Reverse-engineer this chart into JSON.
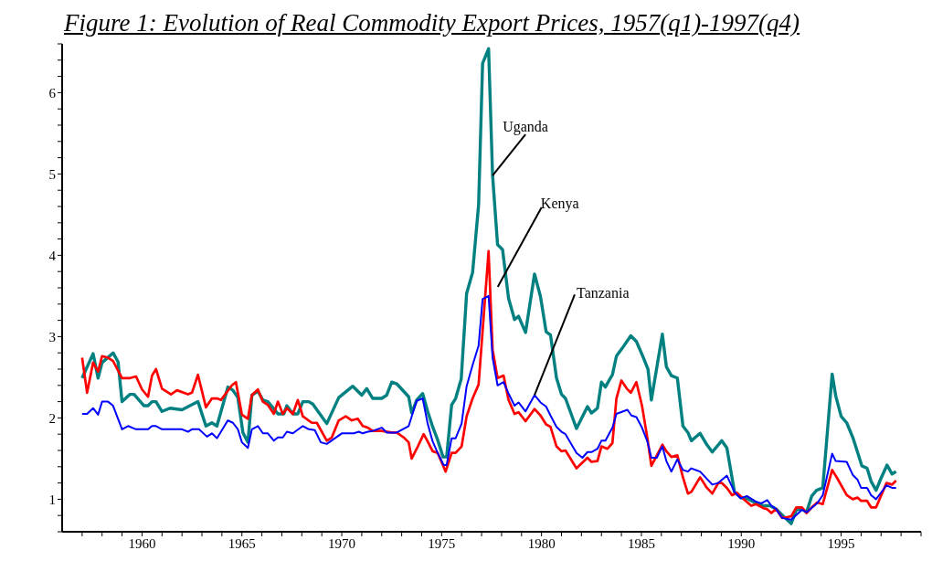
{
  "chart_data": {
    "type": "line",
    "title": "Figure 1: Evolution of Real Commodity Export Prices, 1957(q1)-1997(q4)",
    "xlim": [
      1956,
      1999
    ],
    "xticks": [
      {
        "value": 1957,
        "label": null
      },
      {
        "value": 1958,
        "label": null
      },
      {
        "value": 1959,
        "label": null
      },
      1960,
      {
        "value": 1961,
        "label": null
      },
      {
        "value": 1962,
        "label": null
      },
      {
        "value": 1963,
        "label": null
      },
      {
        "value": 1964,
        "label": null
      },
      1965,
      {
        "value": 1966,
        "label": null
      },
      {
        "value": 1967,
        "label": null
      },
      {
        "value": 1968,
        "label": null
      },
      {
        "value": 1969,
        "label": null
      },
      1970,
      {
        "value": 1971,
        "label": null
      },
      {
        "value": 1972,
        "label": null
      },
      {
        "value": 1973,
        "label": null
      },
      {
        "value": 1974,
        "label": null
      },
      1975,
      {
        "value": 1976,
        "label": null
      },
      {
        "value": 1977,
        "label": null
      },
      {
        "value": 1978,
        "label": null
      },
      {
        "value": 1979,
        "label": null
      },
      1980,
      {
        "value": 1981,
        "label": null
      },
      {
        "value": 1982,
        "label": null
      },
      {
        "value": 1983,
        "label": null
      },
      {
        "value": 1984,
        "label": null
      },
      1985,
      {
        "value": 1986,
        "label": null
      },
      {
        "value": 1987,
        "label": null
      },
      {
        "value": 1988,
        "label": null
      },
      {
        "value": 1989,
        "label": null
      },
      1990,
      {
        "value": 1991,
        "label": null
      },
      {
        "value": 1992,
        "label": null
      },
      {
        "value": 1993,
        "label": null
      },
      {
        "value": 1994,
        "label": null
      },
      1995,
      {
        "value": 1996,
        "label": null
      },
      {
        "value": 1997,
        "label": null
      },
      {
        "value": 1998,
        "label": null
      },
      {
        "value": 1999,
        "label": null
      }
    ],
    "ylim": [
      0.6,
      6.6
    ],
    "yticks": [
      {
        "value": 0.6,
        "label": null
      },
      {
        "value": 0.8,
        "label": null
      },
      1,
      {
        "value": 1.2,
        "label": null
      },
      {
        "value": 1.4,
        "label": null
      },
      {
        "value": 1.6,
        "label": null
      },
      {
        "value": 1.8,
        "label": null
      },
      2,
      {
        "value": 2.2,
        "label": null
      },
      {
        "value": 2.4,
        "label": null
      },
      {
        "value": 2.6,
        "label": null
      },
      {
        "value": 2.8,
        "label": null
      },
      3,
      {
        "value": 3.2,
        "label": null
      },
      {
        "value": 3.4,
        "label": null
      },
      {
        "value": 3.6,
        "label": null
      },
      {
        "value": 3.8,
        "label": null
      },
      4,
      {
        "value": 4.2,
        "label": null
      },
      {
        "value": 4.4,
        "label": null
      },
      {
        "value": 4.6,
        "label": null
      },
      {
        "value": 4.8,
        "label": null
      },
      5,
      {
        "value": 5.2,
        "label": null
      },
      {
        "value": 5.4,
        "label": null
      },
      {
        "value": 5.6,
        "label": null
      },
      {
        "value": 5.8,
        "label": null
      },
      6,
      {
        "value": 6.2,
        "label": null
      },
      {
        "value": 6.4,
        "label": null
      },
      {
        "value": 6.6,
        "label": null
      }
    ],
    "series": [
      {
        "name": "Uganda",
        "color": "#008080",
        "x": [
          1957.0,
          1957.55,
          1957.8,
          1958.0,
          1958.55,
          1958.8,
          1959.0,
          1959.4,
          1959.6,
          1960.1,
          1960.3,
          1960.5,
          1960.7,
          1961.0,
          1961.4,
          1962.0,
          1962.8,
          1963.2,
          1963.5,
          1963.75,
          1964.3,
          1964.55,
          1964.8,
          1965.05,
          1965.3,
          1965.5,
          1965.8,
          1966.05,
          1966.3,
          1966.8,
          1967.1,
          1967.25,
          1967.55,
          1967.8,
          1968.05,
          1968.35,
          1968.55,
          1968.9,
          1969.25,
          1969.85,
          1970.55,
          1971.0,
          1971.25,
          1971.55,
          1972.0,
          1972.25,
          1972.5,
          1972.75,
          1973.35,
          1973.5,
          1973.75,
          1974.05,
          1974.3,
          1974.55,
          1974.8,
          1975.07,
          1975.25,
          1975.5,
          1975.7,
          1975.98,
          1976.25,
          1976.55,
          1976.85,
          1977.05,
          1977.35,
          1977.55,
          1977.8,
          1978.05,
          1978.35,
          1978.65,
          1978.85,
          1979.2,
          1979.65,
          1979.95,
          1980.23,
          1980.45,
          1980.75,
          1981.0,
          1981.2,
          1981.75,
          1982.3,
          1982.5,
          1982.8,
          1983.0,
          1983.2,
          1983.4,
          1983.55,
          1983.75,
          1984.05,
          1984.47,
          1984.75,
          1985.05,
          1985.33,
          1985.5,
          1986.05,
          1986.25,
          1986.5,
          1986.8,
          1987.08,
          1987.33,
          1987.5,
          1987.94,
          1988.28,
          1988.55,
          1989.02,
          1989.28,
          1989.66,
          1989.97,
          1990.28,
          1990.74,
          1991.12,
          1991.43,
          1991.74,
          1992.2,
          1992.5,
          1992.76,
          1993.04,
          1993.27,
          1993.53,
          1993.77,
          1994.08,
          1994.55,
          1994.73,
          1995.0,
          1995.28,
          1995.6,
          1996.04,
          1996.3,
          1996.5,
          1996.75,
          1997.0,
          1997.3,
          1997.55,
          1997.75
        ],
        "values": [
          2.49,
          2.79,
          2.49,
          2.68,
          2.8,
          2.69,
          2.2,
          2.29,
          2.29,
          2.15,
          2.15,
          2.2,
          2.2,
          2.08,
          2.12,
          2.1,
          2.2,
          1.9,
          1.94,
          1.9,
          2.38,
          2.34,
          2.25,
          1.82,
          1.7,
          2.28,
          2.33,
          2.22,
          2.2,
          2.05,
          2.05,
          2.15,
          2.05,
          2.05,
          2.2,
          2.2,
          2.17,
          2.05,
          1.93,
          2.25,
          2.39,
          2.28,
          2.36,
          2.24,
          2.24,
          2.28,
          2.44,
          2.42,
          2.26,
          2.06,
          2.22,
          2.3,
          2.08,
          1.89,
          1.73,
          1.52,
          1.52,
          2.16,
          2.24,
          2.48,
          3.53,
          3.79,
          4.62,
          6.36,
          6.54,
          4.98,
          4.13,
          4.07,
          3.47,
          3.21,
          3.25,
          3.05,
          3.77,
          3.49,
          3.06,
          3.02,
          2.49,
          2.29,
          2.24,
          1.87,
          2.14,
          2.06,
          2.12,
          2.44,
          2.38,
          2.47,
          2.53,
          2.76,
          2.86,
          3.01,
          2.94,
          2.77,
          2.6,
          2.22,
          3.03,
          2.63,
          2.52,
          2.49,
          1.9,
          1.82,
          1.72,
          1.81,
          1.67,
          1.58,
          1.72,
          1.63,
          1.09,
          1.02,
          1.01,
          0.95,
          0.92,
          0.92,
          0.88,
          0.77,
          0.7,
          0.87,
          0.88,
          0.84,
          1.04,
          1.11,
          1.14,
          2.54,
          2.27,
          2.02,
          1.94,
          1.75,
          1.41,
          1.38,
          1.22,
          1.11,
          1.26,
          1.42,
          1.31,
          1.34
        ]
      },
      {
        "name": "Kenya",
        "color": "#ff0000",
        "x": [
          1957.0,
          1957.25,
          1957.55,
          1957.8,
          1958.0,
          1958.3,
          1958.55,
          1959.0,
          1959.4,
          1959.7,
          1960.0,
          1960.3,
          1960.5,
          1960.7,
          1961.0,
          1961.45,
          1961.75,
          1962.3,
          1962.5,
          1962.8,
          1963.2,
          1963.5,
          1963.75,
          1963.95,
          1964.5,
          1964.7,
          1965.0,
          1965.3,
          1965.5,
          1965.8,
          1966.05,
          1966.3,
          1966.6,
          1966.8,
          1967.05,
          1967.25,
          1967.55,
          1967.8,
          1968.05,
          1968.5,
          1968.75,
          1969.25,
          1969.5,
          1969.85,
          1970.2,
          1970.5,
          1970.8,
          1971.05,
          1971.3,
          1971.55,
          1972.0,
          1972.5,
          1972.75,
          1973.1,
          1973.35,
          1973.5,
          1973.75,
          1974.1,
          1974.3,
          1974.55,
          1974.8,
          1975.2,
          1975.5,
          1975.7,
          1976.0,
          1976.25,
          1976.55,
          1976.85,
          1977.35,
          1977.55,
          1977.8,
          1978.1,
          1978.35,
          1978.65,
          1978.85,
          1979.2,
          1979.65,
          1979.95,
          1980.23,
          1980.45,
          1980.75,
          1981.0,
          1981.2,
          1981.75,
          1982.3,
          1982.5,
          1982.8,
          1983.0,
          1983.3,
          1983.55,
          1983.75,
          1984.0,
          1984.27,
          1984.47,
          1984.75,
          1985.03,
          1985.3,
          1985.5,
          1986.05,
          1986.25,
          1986.5,
          1986.8,
          1987.08,
          1987.33,
          1987.5,
          1987.94,
          1988.28,
          1988.55,
          1988.85,
          1989.02,
          1989.28,
          1989.54,
          1989.78,
          1990.13,
          1990.5,
          1990.74,
          1991.12,
          1991.28,
          1991.51,
          1991.74,
          1992.05,
          1992.28,
          1992.5,
          1992.76,
          1993.04,
          1993.27,
          1993.53,
          1993.8,
          1994.08,
          1994.55,
          1994.8,
          1995.28,
          1995.58,
          1995.82,
          1996.0,
          1996.3,
          1996.5,
          1996.75,
          1997.27,
          1997.55,
          1997.75
        ],
        "values": [
          2.74,
          2.31,
          2.68,
          2.57,
          2.76,
          2.74,
          2.7,
          2.49,
          2.49,
          2.51,
          2.35,
          2.26,
          2.52,
          2.6,
          2.36,
          2.29,
          2.34,
          2.29,
          2.31,
          2.53,
          2.13,
          2.24,
          2.24,
          2.22,
          2.4,
          2.44,
          2.04,
          1.99,
          2.28,
          2.35,
          2.2,
          2.16,
          2.05,
          2.2,
          2.05,
          2.12,
          2.05,
          2.22,
          2.02,
          1.94,
          1.94,
          1.72,
          1.76,
          1.97,
          2.02,
          1.97,
          1.99,
          1.9,
          1.88,
          1.84,
          1.84,
          1.82,
          1.82,
          1.76,
          1.7,
          1.5,
          1.62,
          1.8,
          1.71,
          1.59,
          1.57,
          1.34,
          1.57,
          1.57,
          1.65,
          2.02,
          2.24,
          2.41,
          4.05,
          2.84,
          2.49,
          2.52,
          2.22,
          2.05,
          2.07,
          1.96,
          2.11,
          2.03,
          1.92,
          1.89,
          1.65,
          1.59,
          1.6,
          1.38,
          1.51,
          1.46,
          1.47,
          1.65,
          1.62,
          1.69,
          2.24,
          2.46,
          2.36,
          2.31,
          2.44,
          2.15,
          1.75,
          1.41,
          1.67,
          1.59,
          1.52,
          1.54,
          1.27,
          1.07,
          1.09,
          1.27,
          1.14,
          1.07,
          1.2,
          1.2,
          1.14,
          1.05,
          1.08,
          1.0,
          0.92,
          0.94,
          0.89,
          0.88,
          0.83,
          0.88,
          0.77,
          0.78,
          0.79,
          0.9,
          0.9,
          0.83,
          0.9,
          0.96,
          0.94,
          1.36,
          1.26,
          1.05,
          1.0,
          1.02,
          0.98,
          0.98,
          0.9,
          0.9,
          1.2,
          1.18,
          1.23
        ]
      },
      {
        "name": "Tanzania",
        "color": "#0000ff",
        "x": [
          1957.0,
          1957.25,
          1957.55,
          1957.8,
          1958.0,
          1958.3,
          1958.55,
          1959.0,
          1959.3,
          1959.7,
          1960.3,
          1960.5,
          1960.7,
          1961.0,
          1962.0,
          1962.3,
          1962.5,
          1962.85,
          1963.25,
          1963.5,
          1963.75,
          1964.3,
          1964.55,
          1964.8,
          1965.0,
          1965.3,
          1965.5,
          1965.8,
          1966.05,
          1966.3,
          1966.6,
          1966.8,
          1967.05,
          1967.25,
          1967.55,
          1968.05,
          1968.35,
          1968.65,
          1968.95,
          1969.25,
          1970.0,
          1970.6,
          1970.85,
          1971.05,
          1971.3,
          1971.55,
          1972.0,
          1972.25,
          1972.75,
          1973.35,
          1973.75,
          1974.05,
          1974.3,
          1974.55,
          1974.8,
          1975.1,
          1975.25,
          1975.5,
          1975.7,
          1976.0,
          1976.25,
          1976.55,
          1976.85,
          1977.05,
          1977.35,
          1977.55,
          1977.8,
          1978.1,
          1978.35,
          1978.65,
          1978.85,
          1979.2,
          1979.65,
          1979.95,
          1980.23,
          1980.45,
          1980.75,
          1981.0,
          1981.2,
          1981.75,
          1982.05,
          1982.3,
          1982.5,
          1982.8,
          1983.0,
          1983.2,
          1983.55,
          1983.75,
          1984.3,
          1984.5,
          1984.75,
          1985.03,
          1985.3,
          1985.5,
          1985.77,
          1986.05,
          1986.25,
          1986.5,
          1986.8,
          1987.08,
          1987.33,
          1987.5,
          1987.94,
          1988.28,
          1988.55,
          1988.85,
          1989.28,
          1989.66,
          1989.97,
          1990.28,
          1990.74,
          1991.0,
          1991.3,
          1991.51,
          1991.74,
          1992.05,
          1992.5,
          1993.04,
          1993.27,
          1993.8,
          1994.08,
          1994.55,
          1994.73,
          1995.28,
          1995.58,
          1995.82,
          1996.0,
          1996.3,
          1996.5,
          1996.75,
          1997.27,
          1997.55,
          1997.75
        ],
        "values": [
          2.05,
          2.05,
          2.12,
          2.04,
          2.2,
          2.2,
          2.15,
          1.86,
          1.9,
          1.86,
          1.86,
          1.9,
          1.9,
          1.86,
          1.86,
          1.83,
          1.86,
          1.86,
          1.77,
          1.81,
          1.75,
          1.97,
          1.94,
          1.86,
          1.7,
          1.63,
          1.86,
          1.9,
          1.81,
          1.81,
          1.72,
          1.76,
          1.76,
          1.83,
          1.81,
          1.9,
          1.86,
          1.85,
          1.7,
          1.68,
          1.81,
          1.81,
          1.83,
          1.81,
          1.83,
          1.84,
          1.88,
          1.82,
          1.82,
          1.9,
          2.21,
          2.24,
          1.93,
          1.71,
          1.57,
          1.42,
          1.42,
          1.75,
          1.75,
          1.93,
          2.39,
          2.65,
          2.89,
          3.46,
          3.5,
          2.74,
          2.4,
          2.44,
          2.3,
          2.15,
          2.19,
          2.08,
          2.28,
          2.19,
          2.14,
          2.03,
          1.89,
          1.83,
          1.8,
          1.57,
          1.51,
          1.58,
          1.58,
          1.62,
          1.72,
          1.72,
          1.88,
          2.05,
          2.1,
          2.03,
          2.01,
          1.88,
          1.71,
          1.51,
          1.51,
          1.65,
          1.47,
          1.34,
          1.49,
          1.36,
          1.34,
          1.38,
          1.34,
          1.25,
          1.18,
          1.2,
          1.29,
          1.09,
          1.01,
          1.04,
          0.97,
          0.95,
          0.99,
          0.92,
          0.88,
          0.77,
          0.75,
          0.87,
          0.84,
          0.95,
          1.05,
          1.56,
          1.47,
          1.46,
          1.3,
          1.24,
          1.14,
          1.14,
          1.05,
          1.0,
          1.17,
          1.14,
          1.14
        ]
      }
    ]
  }
}
